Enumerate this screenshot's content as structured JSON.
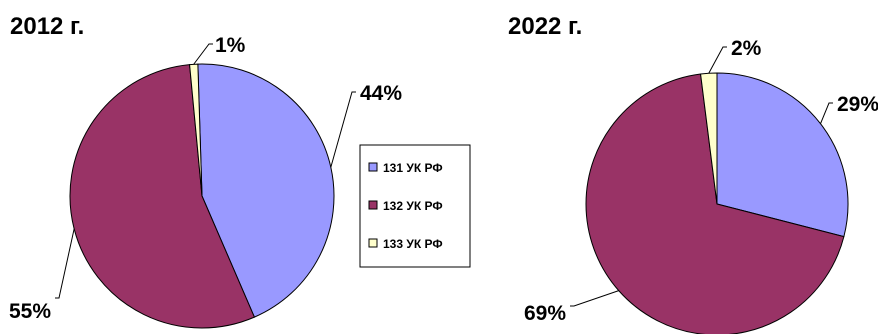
{
  "chart_data": [
    {
      "type": "pie",
      "title": "2012 г.",
      "slices": [
        {
          "name": "131 УК РФ",
          "value": 44,
          "label": "44%"
        },
        {
          "name": "132 УК РФ",
          "value": 55,
          "label": "55%"
        },
        {
          "name": "133 УК РФ",
          "value": 1,
          "label": "1%"
        }
      ]
    },
    {
      "type": "pie",
      "title": "2022 г.",
      "slices": [
        {
          "name": "131 УК РФ",
          "value": 29,
          "label": "29%"
        },
        {
          "name": "132 УК РФ",
          "value": 69,
          "label": "69%"
        },
        {
          "name": "133 УК РФ",
          "value": 2,
          "label": "2%"
        }
      ]
    }
  ],
  "legend": {
    "items": [
      {
        "label": "131 УК РФ",
        "color": "#9999ff"
      },
      {
        "label": "132 УК РФ",
        "color": "#993366"
      },
      {
        "label": "133 УК РФ",
        "color": "#ffffcc"
      }
    ]
  }
}
